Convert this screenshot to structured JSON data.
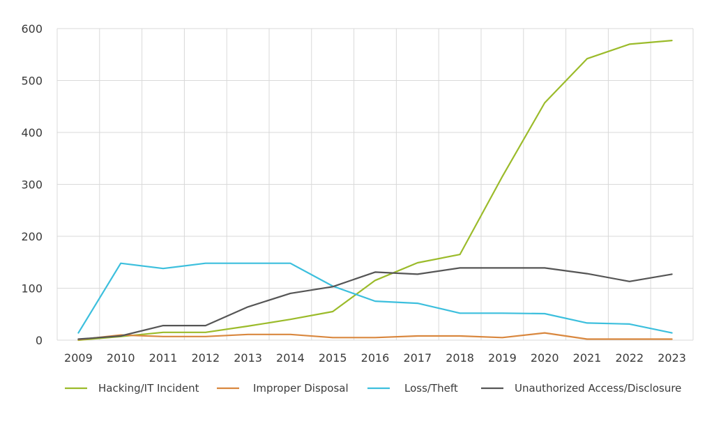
{
  "chart_data": {
    "type": "line",
    "title": "",
    "xlabel": "",
    "ylabel": "",
    "categories": [
      "2009",
      "2010",
      "2011",
      "2012",
      "2013",
      "2014",
      "2015",
      "2016",
      "2017",
      "2018",
      "2019",
      "2020",
      "2021",
      "2022",
      "2023"
    ],
    "y_ticks": [
      "0",
      "100",
      "200",
      "300",
      "400",
      "500",
      "600"
    ],
    "ylim": [
      0,
      600
    ],
    "grid": true,
    "legend_position": "bottom",
    "series": [
      {
        "name": "Hacking/IT Incident",
        "color": "#9bbb2a",
        "values": [
          0,
          7,
          15,
          15,
          27,
          40,
          55,
          115,
          149,
          165,
          315,
          457,
          542,
          570,
          577
        ]
      },
      {
        "name": "Improper Disposal",
        "color": "#d9873e",
        "values": [
          1,
          10,
          7,
          7,
          11,
          11,
          5,
          5,
          8,
          8,
          5,
          14,
          2,
          2,
          2
        ]
      },
      {
        "name": "Loss/Theft",
        "color": "#3cbfdd",
        "values": [
          14,
          148,
          138,
          148,
          148,
          148,
          104,
          75,
          71,
          52,
          52,
          51,
          33,
          31,
          14
        ]
      },
      {
        "name": "Unauthorized Access/Disclosure",
        "color": "#555555",
        "values": [
          2,
          8,
          28,
          28,
          64,
          90,
          103,
          131,
          127,
          139,
          139,
          139,
          128,
          113,
          127
        ]
      }
    ]
  }
}
